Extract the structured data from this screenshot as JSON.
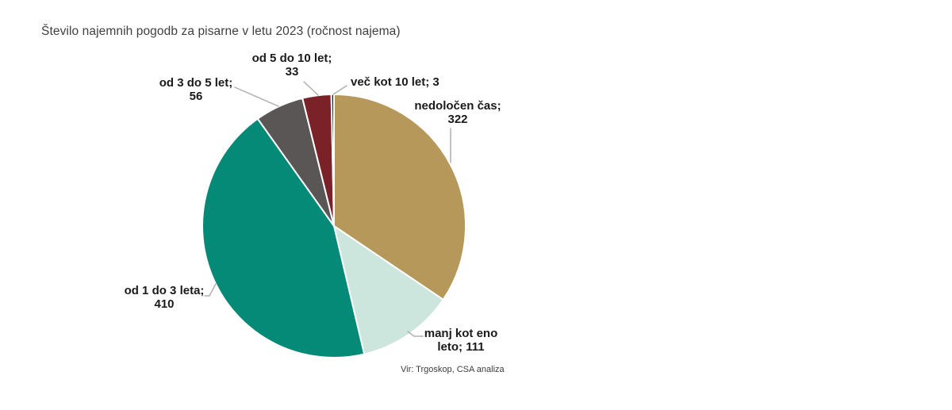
{
  "title": "Število najemnih pogodb za pisarne v letu 2023 (ročnost najema)",
  "source": "Vir: Trgoskop, CSA analiza",
  "chart_data": {
    "type": "pie",
    "title": "Število najemnih pogodb za pisarne v letu 2023 (ročnost najema)",
    "total": 935,
    "start_angle_deg": 0,
    "direction": "clockwise",
    "legend_position": "none",
    "gap_color": "#FFFFFF",
    "leader_line_color": "#B1AFAE",
    "slices": [
      {
        "label": "nedoločen čas",
        "value": 322,
        "color": "#B6985A",
        "label_line1": "nedoločen čas;",
        "label_line2": "322"
      },
      {
        "label": "manj kot eno leto",
        "value": 111,
        "color": "#CCE5DD",
        "label_line1": "manj kot eno",
        "label_line2": "leto; 111"
      },
      {
        "label": "od 1 do 3 leta",
        "value": 410,
        "color": "#048A76",
        "label_line1": "od 1 do 3 leta;",
        "label_line2": "410"
      },
      {
        "label": "od 3 do 5 let",
        "value": 56,
        "color": "#595655",
        "label_line1": "od 3 do 5 let;",
        "label_line2": "56"
      },
      {
        "label": "od 5 do 10 let",
        "value": 33,
        "color": "#7B2128",
        "label_line1": "od 5 do 10 let;",
        "label_line2": "33"
      },
      {
        "label": "več kot 10 let",
        "value": 3,
        "color": "#221B15",
        "label_line1": "več kot 10 let; 3",
        "label_line2": ""
      }
    ]
  }
}
